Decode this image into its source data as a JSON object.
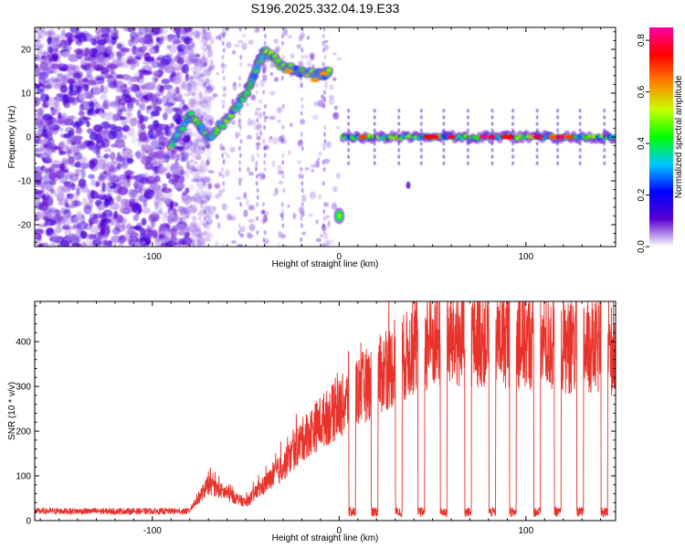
{
  "title": "S196.2025.332.04.19.E33",
  "chart_data": [
    {
      "type": "heatmap",
      "title": "S196.2025.332.04.19.E33",
      "xlabel": "Height of straight line (km)",
      "ylabel": "Frequency (Hz)",
      "xlim": [
        -163,
        148
      ],
      "ylim": [
        -25,
        25
      ],
      "xticks": [
        -100,
        0,
        100
      ],
      "yticks": [
        -20,
        -10,
        0,
        10,
        20
      ],
      "colorbar": {
        "label": "Normalized spectral amplitude",
        "range": [
          0.0,
          0.85
        ],
        "ticks": [
          "0.0",
          "0.2",
          "0.4",
          "0.6",
          "0.8"
        ],
        "ticks_values": [
          0.0,
          0.2,
          0.4,
          0.6,
          0.8
        ],
        "colors": [
          "#ffffff",
          "#5a00d0",
          "#0000ff",
          "#00c8ff",
          "#00ff00",
          "#c8ff00",
          "#ff8000",
          "#ff0000",
          "#ff00a0"
        ]
      },
      "features": [
        {
          "name": "low-altitude noise",
          "x_range": [
            -163,
            -80
          ],
          "freq_range": [
            -25,
            25
          ],
          "amplitude": 0.1
        },
        {
          "name": "rising track",
          "points": [
            [
              -90,
              -2
            ],
            [
              -80,
              5
            ],
            [
              -70,
              0
            ],
            [
              -60,
              4
            ],
            [
              -50,
              10
            ],
            [
              -45,
              15
            ],
            [
              -40,
              20
            ],
            [
              -30,
              16
            ],
            [
              -20,
              15
            ],
            [
              -10,
              14
            ],
            [
              -5,
              15
            ]
          ],
          "amplitude": 0.45
        },
        {
          "name": "negative frequency blip",
          "x": 0,
          "freq": -18,
          "amplitude": 0.4
        },
        {
          "name": "zero-frequency line",
          "x_range": [
            0,
            148
          ],
          "freq": 0,
          "amplitude": 0.7
        }
      ]
    },
    {
      "type": "line",
      "title": "",
      "xlabel": "Height of straight line (km)",
      "ylabel": "SNR (10 * v/v)",
      "xlim": [
        -163,
        148
      ],
      "ylim": [
        0,
        490
      ],
      "xticks": [
        -100,
        0,
        100
      ],
      "yticks": [
        0,
        100,
        200,
        300,
        400
      ],
      "series": [
        {
          "name": "SNR",
          "color": "#e8322a",
          "envelope": {
            "x": [
              -163,
              -80,
              -70,
              -60,
              -50,
              -40,
              -30,
              -20,
              -10,
              0,
              10,
              20,
              30,
              40,
              50,
              60,
              80,
              100,
              120,
              148
            ],
            "y": [
              20,
              25,
              80,
              60,
              40,
              80,
              120,
              180,
              220,
              250,
              290,
              320,
              350,
              380,
              400,
              400,
              410,
              400,
              390,
              380
            ]
          },
          "dropouts_x": [
            7,
            19,
            32,
            44,
            56,
            69,
            82,
            93,
            106,
            117,
            129,
            142
          ]
        }
      ]
    }
  ]
}
